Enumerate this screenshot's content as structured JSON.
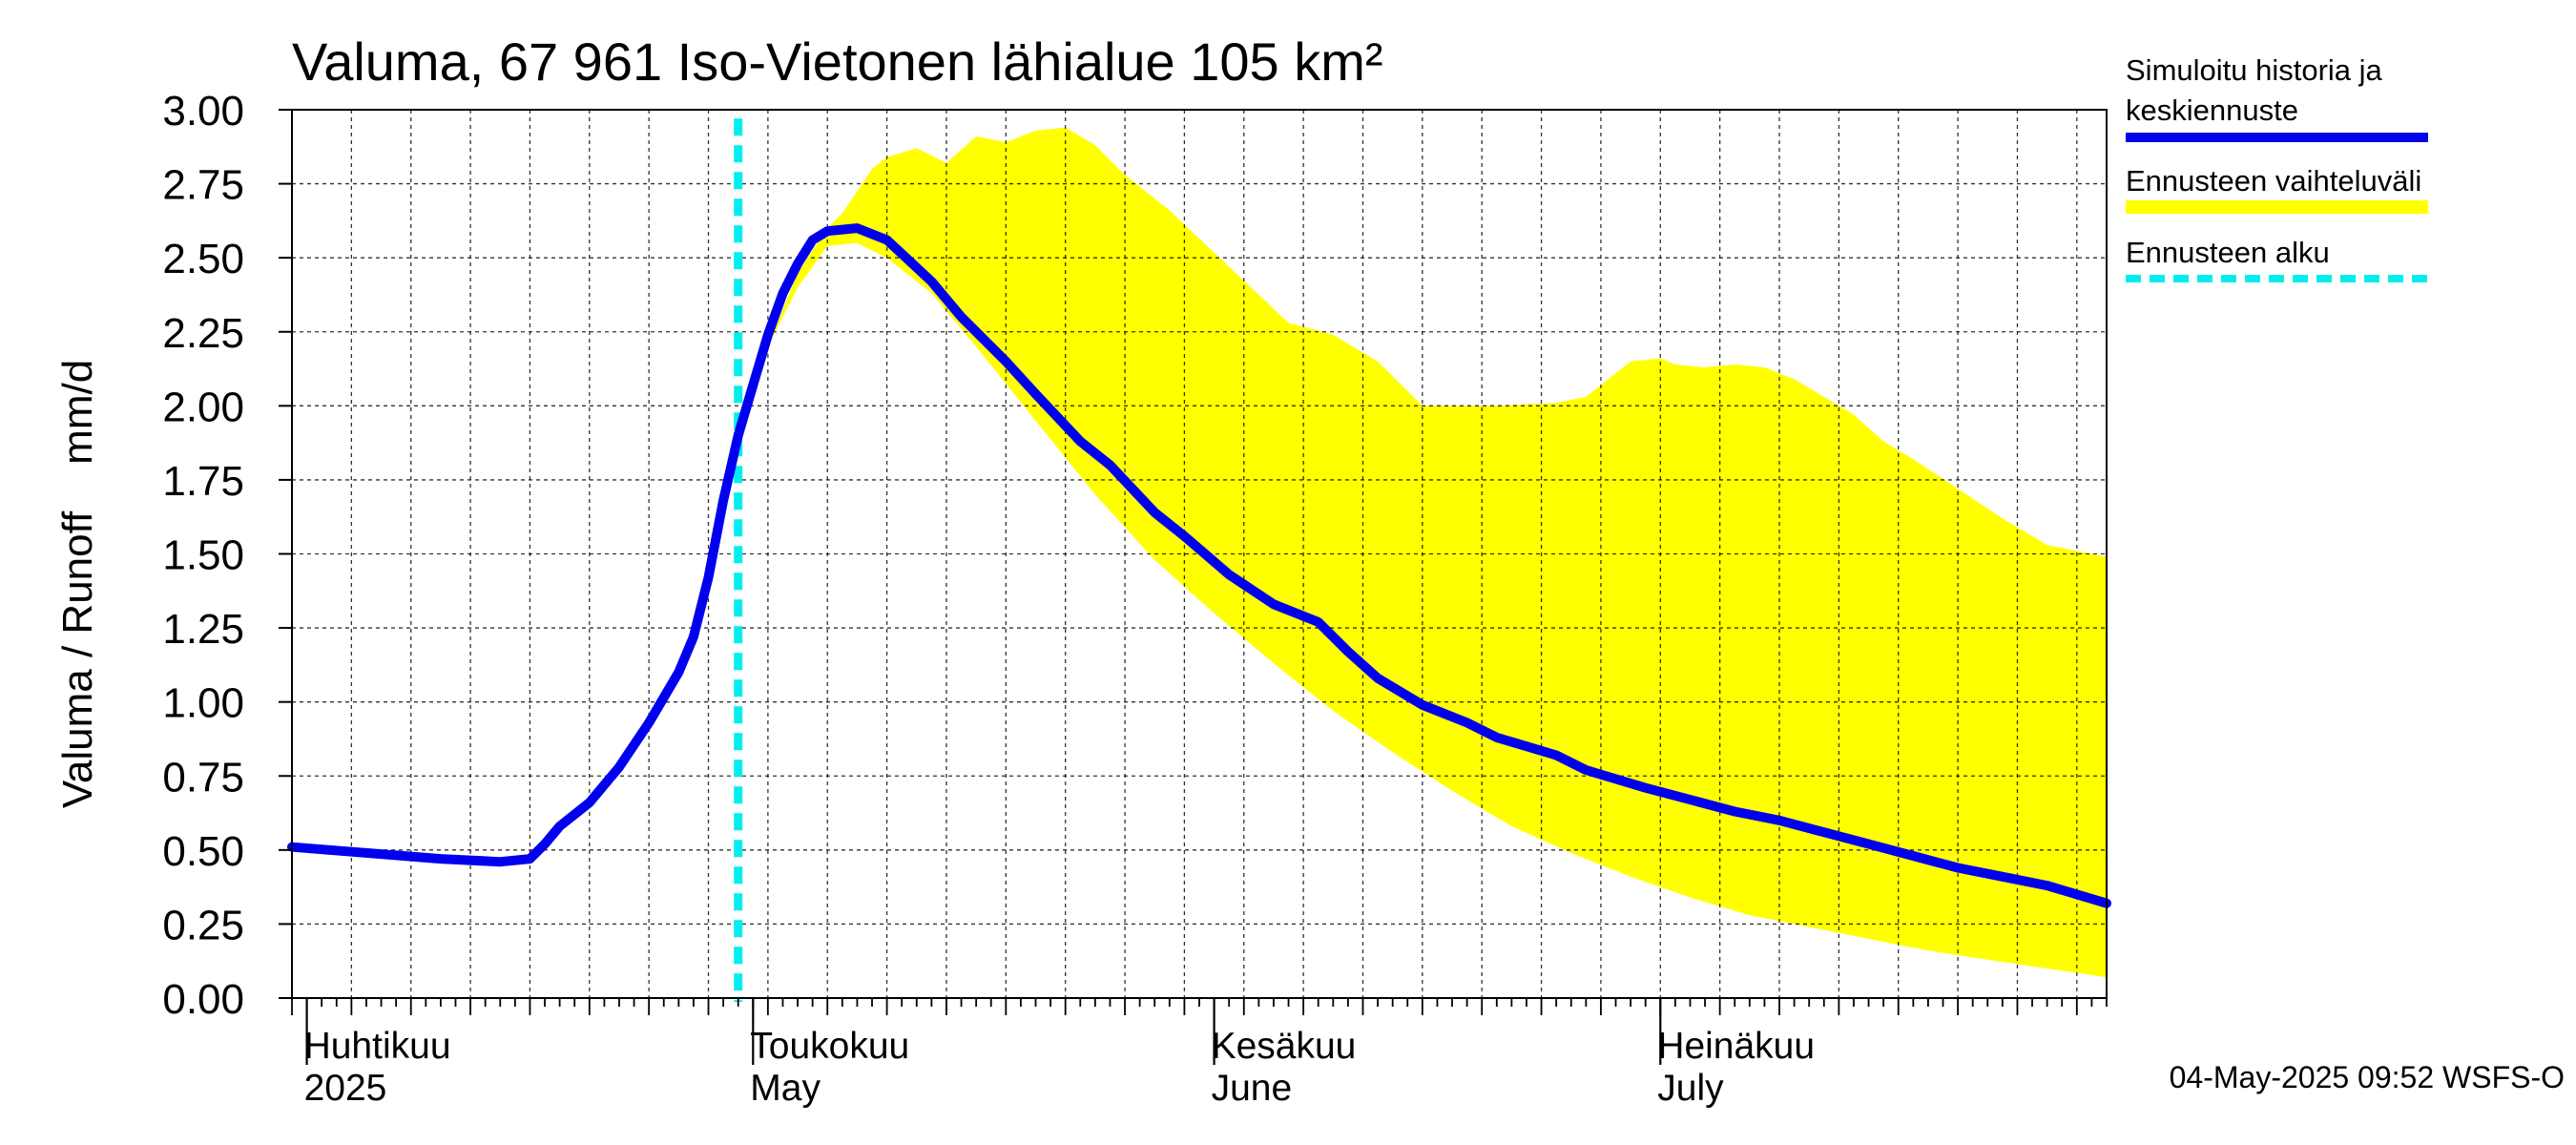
{
  "chart_data": {
    "type": "area",
    "title": "Valuma, 67 961 Iso-Vietonen lähialue 105 km²",
    "ylabel": "Valuma / Runoff    mm/d",
    "ylim": [
      0,
      3.0
    ],
    "yticks": [
      "0.00",
      "0.25",
      "0.50",
      "0.75",
      "1.00",
      "1.25",
      "1.50",
      "1.75",
      "2.00",
      "2.25",
      "2.50",
      "2.75",
      "3.00"
    ],
    "xlim": [
      "2025-03-31",
      "2025-07-31"
    ],
    "months": [
      {
        "date": "2025-04-01",
        "fi": "Huhtikuu",
        "en": "2025"
      },
      {
        "date": "2025-05-01",
        "fi": "Toukokuu",
        "en": "May"
      },
      {
        "date": "2025-06-01",
        "fi": "Kesäkuu",
        "en": "June"
      },
      {
        "date": "2025-07-01",
        "fi": "Heinäkuu",
        "en": "July"
      }
    ],
    "forecast_start": "2025-04-30",
    "legend": {
      "simulated_line1": "Simuloitu historia ja",
      "simulated_line2": "keskiennuste",
      "range": "Ennusteen vaihteluväli",
      "start": "Ennusteen alku"
    },
    "colors": {
      "simulated": "#0000ee",
      "range": "#ffff00",
      "start": "#00eeee"
    },
    "series": [
      {
        "name": "Simuloitu historia ja keskiennuste",
        "x": [
          "2025-03-31",
          "2025-04-05",
          "2025-04-10",
          "2025-04-14",
          "2025-04-16",
          "2025-04-17",
          "2025-04-18",
          "2025-04-20",
          "2025-04-22",
          "2025-04-24",
          "2025-04-26",
          "2025-04-27",
          "2025-04-28",
          "2025-04-29",
          "2025-04-30",
          "2025-05-01",
          "2025-05-02",
          "2025-05-03",
          "2025-05-04",
          "2025-05-05",
          "2025-05-06",
          "2025-05-08",
          "2025-05-10",
          "2025-05-13",
          "2025-05-15",
          "2025-05-18",
          "2025-05-20",
          "2025-05-23",
          "2025-05-25",
          "2025-05-28",
          "2025-05-30",
          "2025-06-02",
          "2025-06-05",
          "2025-06-08",
          "2025-06-10",
          "2025-06-12",
          "2025-06-15",
          "2025-06-18",
          "2025-06-20",
          "2025-06-22",
          "2025-06-24",
          "2025-06-26",
          "2025-06-28",
          "2025-06-30",
          "2025-07-03",
          "2025-07-06",
          "2025-07-09",
          "2025-07-12",
          "2025-07-15",
          "2025-07-18",
          "2025-07-21",
          "2025-07-24",
          "2025-07-27",
          "2025-07-31"
        ],
        "y": [
          0.51,
          0.49,
          0.47,
          0.46,
          0.47,
          0.52,
          0.58,
          0.66,
          0.78,
          0.93,
          1.1,
          1.22,
          1.42,
          1.68,
          1.9,
          2.07,
          2.24,
          2.38,
          2.48,
          2.56,
          2.59,
          2.6,
          2.56,
          2.42,
          2.3,
          2.15,
          2.04,
          1.88,
          1.8,
          1.64,
          1.56,
          1.43,
          1.33,
          1.27,
          1.17,
          1.08,
          0.99,
          0.93,
          0.88,
          0.85,
          0.82,
          0.77,
          0.74,
          0.71,
          0.67,
          0.63,
          0.6,
          0.56,
          0.52,
          0.48,
          0.44,
          0.41,
          0.38,
          0.32
        ]
      },
      {
        "name": "Ennusteen vaihteluväli (upper)",
        "x": [
          "2025-04-30",
          "2025-05-02",
          "2025-05-04",
          "2025-05-06",
          "2025-05-07",
          "2025-05-09",
          "2025-05-10",
          "2025-05-12",
          "2025-05-14",
          "2025-05-16",
          "2025-05-18",
          "2025-05-20",
          "2025-05-22",
          "2025-05-24",
          "2025-05-26",
          "2025-05-29",
          "2025-06-02",
          "2025-06-06",
          "2025-06-09",
          "2025-06-12",
          "2025-06-15",
          "2025-06-17",
          "2025-06-20",
          "2025-06-24",
          "2025-06-26",
          "2025-06-29",
          "2025-07-01",
          "2025-07-02",
          "2025-07-04",
          "2025-07-06",
          "2025-07-08",
          "2025-07-10",
          "2025-07-12",
          "2025-07-14",
          "2025-07-16",
          "2025-07-18",
          "2025-07-21",
          "2025-07-24",
          "2025-07-27",
          "2025-07-31"
        ],
        "y": [
          1.9,
          2.2,
          2.45,
          2.6,
          2.65,
          2.8,
          2.84,
          2.87,
          2.82,
          2.91,
          2.89,
          2.93,
          2.94,
          2.88,
          2.78,
          2.66,
          2.47,
          2.28,
          2.24,
          2.15,
          2.0,
          2.0,
          2.0,
          2.01,
          2.03,
          2.15,
          2.16,
          2.14,
          2.13,
          2.14,
          2.13,
          2.09,
          2.03,
          1.97,
          1.88,
          1.82,
          1.72,
          1.62,
          1.53,
          1.49
        ]
      },
      {
        "name": "Ennusteen vaihteluväli (lower)",
        "x": [
          "2025-04-30",
          "2025-05-02",
          "2025-05-04",
          "2025-05-06",
          "2025-05-08",
          "2025-05-10",
          "2025-05-13",
          "2025-05-16",
          "2025-05-20",
          "2025-05-24",
          "2025-05-28",
          "2025-06-01",
          "2025-06-05",
          "2025-06-09",
          "2025-06-13",
          "2025-06-17",
          "2025-06-21",
          "2025-06-25",
          "2025-06-29",
          "2025-07-03",
          "2025-07-07",
          "2025-07-11",
          "2025-07-15",
          "2025-07-19",
          "2025-07-23",
          "2025-07-27",
          "2025-07-31"
        ],
        "y": [
          1.9,
          2.2,
          2.4,
          2.54,
          2.55,
          2.5,
          2.38,
          2.2,
          1.95,
          1.7,
          1.48,
          1.3,
          1.13,
          0.97,
          0.83,
          0.7,
          0.58,
          0.49,
          0.41,
          0.34,
          0.28,
          0.24,
          0.2,
          0.16,
          0.13,
          0.1,
          0.07
        ]
      }
    ]
  },
  "footer": "04-May-2025 09:52 WSFS-O"
}
